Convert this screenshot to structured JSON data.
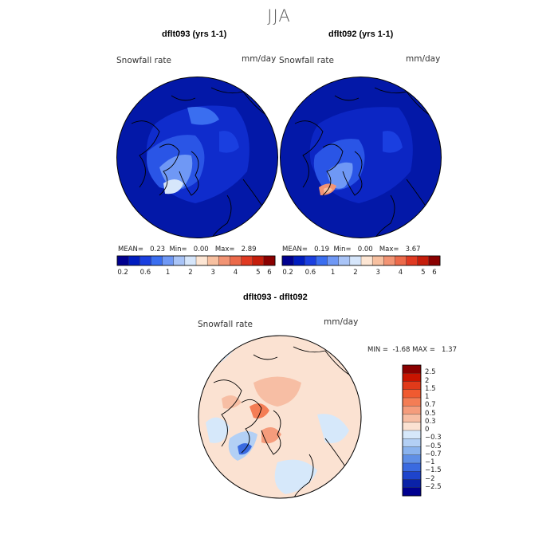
{
  "figure": {
    "season": "JJA",
    "units": "mm/day",
    "variable": "Snowfall rate"
  },
  "panels": [
    {
      "id": "dflt093",
      "title": "dflt093 (yrs 1-1)",
      "mean_label": "MEAN=",
      "mean": "0.23",
      "min_label": "Min=",
      "min": "0.00",
      "max_label": "Max=",
      "max": "2.89"
    },
    {
      "id": "dflt092",
      "title": "dflt092 (yrs 1-1)",
      "mean_label": "MEAN=",
      "mean": "0.19",
      "min_label": "Min=",
      "min": "0.00",
      "max_label": "Max=",
      "max": "3.67"
    }
  ],
  "abs_colorbar": {
    "ticks": [
      "0.2",
      "0.6",
      "1",
      "2",
      "3",
      "4",
      "5",
      "6"
    ],
    "colors": [
      "#00008f",
      "#001cbf",
      "#1a3fe0",
      "#3a6ef0",
      "#6f98f5",
      "#a9c4f7",
      "#d6e6fb",
      "#fde6d4",
      "#f7c0a0",
      "#f29474",
      "#ec6a4a",
      "#e03a22",
      "#c51d0b",
      "#8a0000"
    ]
  },
  "diff_panel": {
    "title": "dflt093 - dflt092",
    "min_label": "MIN =",
    "min": "-1.68",
    "max_label": "MAX =",
    "max": "1.37",
    "ticks": [
      "2.5",
      "2",
      "1.5",
      "1",
      "0.7",
      "0.5",
      "0.3",
      "0",
      "−0.3",
      "−0.5",
      "−0.7",
      "−1",
      "−1.5",
      "−2",
      "−2.5"
    ],
    "colors": [
      "#8a0000",
      "#c81400",
      "#e03a1a",
      "#f05a30",
      "#f47d55",
      "#f59c7c",
      "#f7bea4",
      "#fbe2d2",
      "#d6e8fa",
      "#b3d0f5",
      "#8ab3ee",
      "#5f8fe6",
      "#3a6ae0",
      "#1e44cc",
      "#0a22a8",
      "#00008f"
    ]
  }
}
